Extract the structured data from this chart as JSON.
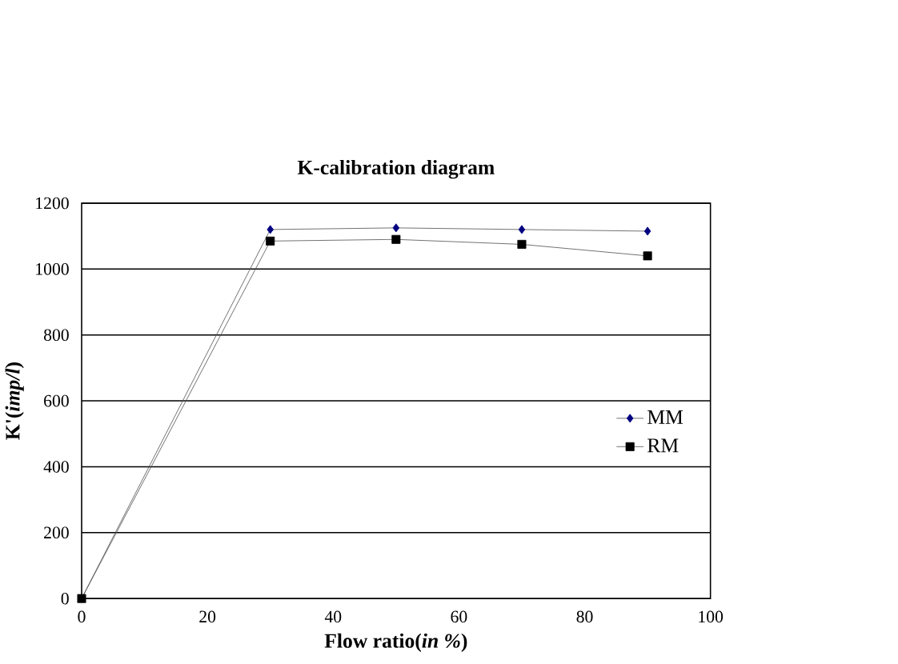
{
  "chart_data": {
    "type": "line",
    "title": "K-calibration diagram",
    "xlabel": "Flow ratio(*in %*)",
    "ylabel": "K'(*imp/l*)",
    "x": [
      0,
      30,
      50,
      70,
      90
    ],
    "series": [
      {
        "name": "MM",
        "color": "#000080",
        "values": [
          0,
          1120,
          1125,
          1120,
          1115
        ],
        "marker": "diamond"
      },
      {
        "name": "RM",
        "color": "#000000",
        "values": [
          0,
          1085,
          1090,
          1075,
          1040
        ],
        "marker": "square"
      }
    ],
    "xlim": [
      0,
      100
    ],
    "xticks": [
      0,
      20,
      40,
      60,
      80,
      100
    ],
    "ylim": [
      0,
      1200
    ],
    "yticks": [
      0,
      200,
      400,
      600,
      800,
      1000,
      1200
    ],
    "grid": "y",
    "legend": "right",
    "line_style": "solid"
  }
}
